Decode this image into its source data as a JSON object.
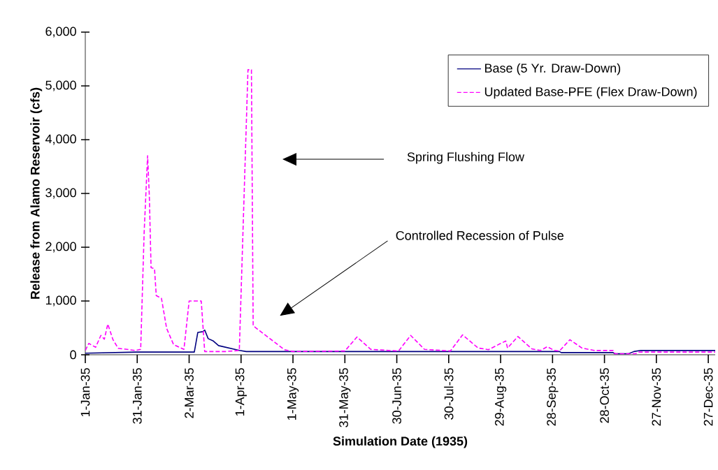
{
  "chart_data": {
    "type": "line",
    "xlabel": "Simulation Date (1935)",
    "ylabel": "Release from Alamo Reservoir (cfs)",
    "xlim": [
      "1935-01-01",
      "1935-12-31"
    ],
    "ylim": [
      0,
      6000
    ],
    "xticks": [
      {
        "value": "1935-01-01",
        "label": "1-Jan-35"
      },
      {
        "value": "1935-01-31",
        "label": "31-Jan-35"
      },
      {
        "value": "1935-03-02",
        "label": "2-Mar-35"
      },
      {
        "value": "1935-04-01",
        "label": "1-Apr-35"
      },
      {
        "value": "1935-05-01",
        "label": "1-May-35"
      },
      {
        "value": "1935-05-31",
        "label": "31-May-35"
      },
      {
        "value": "1935-06-30",
        "label": "30-Jun-35"
      },
      {
        "value": "1935-07-30",
        "label": "30-Jul-35"
      },
      {
        "value": "1935-08-29",
        "label": "29-Aug-35"
      },
      {
        "value": "1935-09-28",
        "label": "28-Sep-35"
      },
      {
        "value": "1935-10-28",
        "label": "28-Oct-35"
      },
      {
        "value": "1935-11-27",
        "label": "27-Nov-35"
      },
      {
        "value": "1935-12-27",
        "label": "27-Dec-35"
      }
    ],
    "yticks": [
      0,
      {
        "value": 1000,
        "label": "1,000"
      },
      {
        "value": 2000,
        "label": "2,000"
      },
      {
        "value": 3000,
        "label": "3,000"
      },
      {
        "value": 4000,
        "label": "4,000"
      },
      {
        "value": 5000,
        "label": "5,000"
      },
      {
        "value": 6000,
        "label": "6,000"
      }
    ],
    "legend": "top right",
    "marker": "none",
    "annotations": [
      "Spring Flushing Flow",
      "Controlled Recession of Pulse"
    ],
    "series": [
      {
        "name": "Base (5 Yr. Draw-Down)",
        "color": "#000080",
        "line_style": "solid",
        "x": [
          "1935-01-01",
          "1935-01-31",
          "1935-03-05",
          "1935-03-07",
          "1935-03-10",
          "1935-03-11",
          "1935-03-13",
          "1935-03-16",
          "1935-03-19",
          "1935-03-25",
          "1935-03-31",
          "1935-04-04",
          "1935-04-15",
          "1935-10-02",
          "1935-10-03",
          "1935-11-02",
          "1935-11-03",
          "1935-11-11",
          "1935-11-14",
          "1935-11-18",
          "1935-12-31"
        ],
        "values": [
          30,
          50,
          50,
          415,
          430,
          460,
          300,
          255,
          170,
          125,
          80,
          60,
          60,
          60,
          40,
          40,
          20,
          20,
          60,
          80,
          80
        ]
      },
      {
        "name": "Updated Base-PFE (Flex Draw-Down)",
        "color": "#ff00ff",
        "line_style": "dashed",
        "x": [
          "1935-01-01",
          "1935-01-03",
          "1935-01-07",
          "1935-01-10",
          "1935-01-12",
          "1935-01-14",
          "1935-01-17",
          "1935-01-20",
          "1935-01-30",
          "1935-02-02",
          "1935-02-04",
          "1935-02-06",
          "1935-02-07",
          "1935-02-08",
          "1935-02-10",
          "1935-02-11",
          "1935-02-14",
          "1935-02-17",
          "1935-02-21",
          "1935-02-27",
          "1935-03-02",
          "1935-03-09",
          "1935-03-11",
          "1935-03-23",
          "1935-03-31",
          "1935-04-05",
          "1935-04-07",
          "1935-04-08",
          "1935-04-10",
          "1935-04-26",
          "1935-05-01",
          "1935-05-31",
          "1935-06-07",
          "1935-06-15",
          "1935-07-01",
          "1935-07-08",
          "1935-07-16",
          "1935-07-31",
          "1935-08-07",
          "1935-08-16",
          "1935-08-22",
          "1935-08-29",
          "1935-09-01",
          "1935-09-02",
          "1935-09-08",
          "1935-09-16",
          "1935-09-21",
          "1935-09-25",
          "1935-09-29",
          "1935-10-02",
          "1935-10-08",
          "1935-10-15",
          "1935-10-22",
          "1935-11-02",
          "1935-11-03",
          "1935-11-15",
          "1935-11-17",
          "1935-12-31"
        ],
        "values": [
          80,
          210,
          140,
          360,
          290,
          570,
          280,
          120,
          80,
          100,
          2270,
          3700,
          2960,
          1620,
          1600,
          1100,
          1050,
          490,
          190,
          100,
          1000,
          1000,
          60,
          60,
          80,
          5300,
          5300,
          540,
          490,
          95,
          60,
          70,
          330,
          100,
          70,
          360,
          100,
          70,
          370,
          125,
          95,
          210,
          255,
          125,
          340,
          110,
          80,
          150,
          80,
          70,
          280,
          125,
          80,
          80,
          20,
          20,
          50,
          50
        ]
      }
    ]
  }
}
